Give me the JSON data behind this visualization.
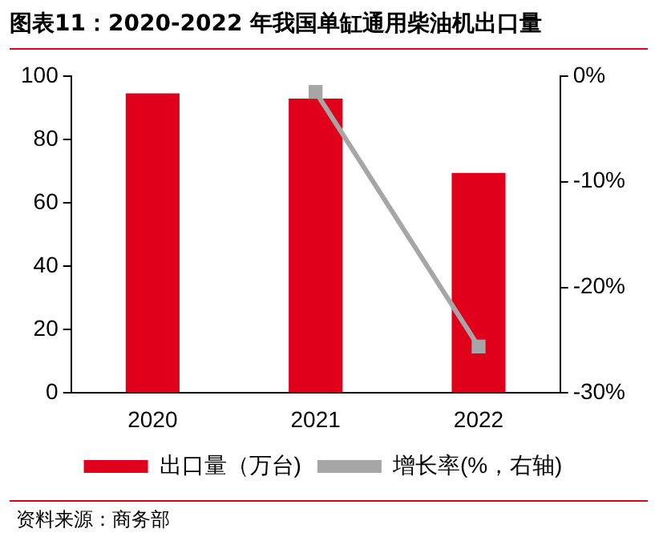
{
  "chart_data": {
    "type": "bar",
    "title": "图表11：2020-2022 年我国单缸通用柴油机出口量",
    "categories": [
      "2020",
      "2021",
      "2022"
    ],
    "series": [
      {
        "name": "出口量（万台)",
        "color": "#e0001b",
        "values": [
          94.5,
          92.9,
          69.4
        ]
      },
      {
        "name": "增长率(%，右轴)",
        "type": "line",
        "axis": "y2",
        "color": "#a6a6a6",
        "values": [
          null,
          -1.5,
          -25.6
        ],
        "marker": "square"
      }
    ],
    "ylim": [
      0,
      100
    ],
    "yticks": [
      0,
      20,
      40,
      60,
      80,
      100
    ],
    "y2lim": [
      -30,
      0
    ],
    "y2ticks": [
      {
        "value": -30,
        "label": "-30%"
      },
      {
        "value": -20,
        "label": "-20%"
      },
      {
        "value": -10,
        "label": "-10%"
      },
      {
        "value": 0,
        "label": "0%"
      }
    ],
    "grid": false,
    "legend": "bottom",
    "annotations": [
      "资料来源：商务部"
    ]
  }
}
